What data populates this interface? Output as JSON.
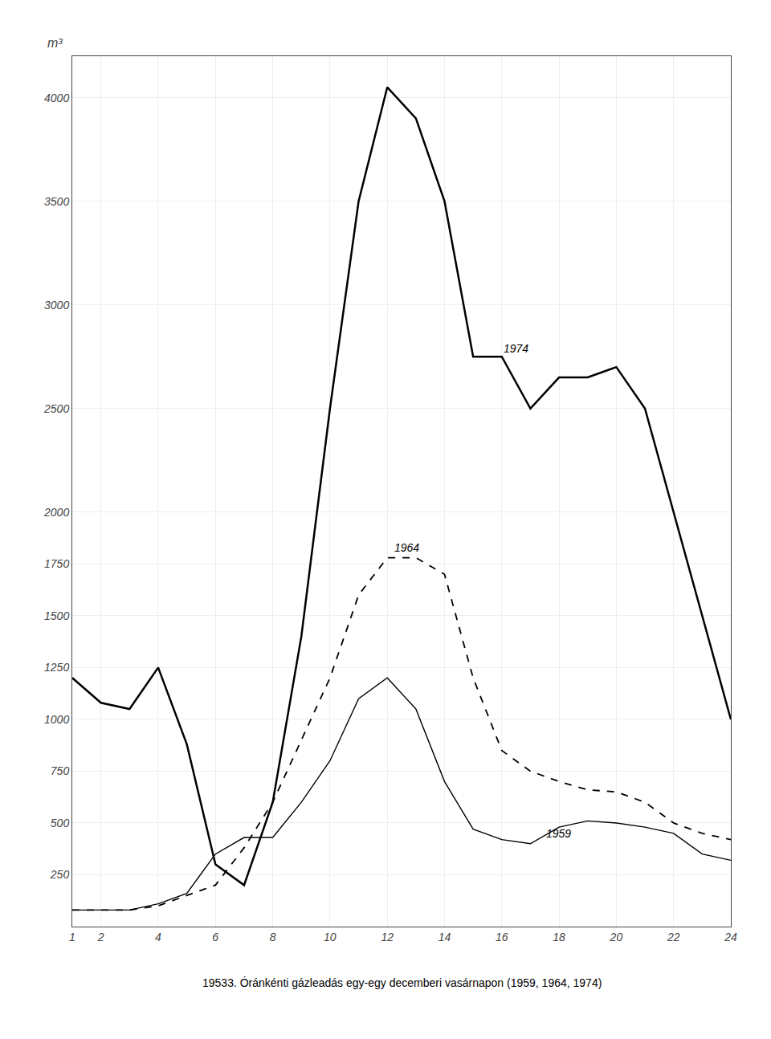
{
  "chart_data": {
    "type": "line",
    "ylabel": "m³",
    "caption": "19533. Óránkénti gázleadás egy-egy decemberi vasárnapon (1959, 1964, 1974)",
    "x": [
      1,
      2,
      3,
      4,
      5,
      6,
      7,
      8,
      9,
      10,
      11,
      12,
      13,
      14,
      15,
      16,
      17,
      18,
      19,
      20,
      21,
      22,
      23,
      24
    ],
    "series": [
      {
        "name": "1974",
        "color": "#000000",
        "line_style": "solid",
        "values": [
          1200,
          1080,
          1050,
          1250,
          880,
          300,
          200,
          600,
          1400,
          2500,
          3500,
          4050,
          3900,
          3500,
          2750,
          2750,
          2500,
          2650,
          2650,
          2700,
          2500,
          2000,
          1500,
          1000
        ]
      },
      {
        "name": "1964",
        "color": "#000000",
        "line_style": "dashed",
        "values": [
          80,
          80,
          80,
          100,
          150,
          200,
          380,
          600,
          900,
          1200,
          1600,
          1780,
          1780,
          1700,
          1200,
          850,
          750,
          700,
          660,
          650,
          600,
          500,
          450,
          420
        ]
      },
      {
        "name": "1959",
        "color": "#000000",
        "line_style": "solid",
        "values": [
          80,
          80,
          80,
          110,
          160,
          350,
          430,
          430,
          600,
          800,
          1100,
          1200,
          1050,
          700,
          470,
          420,
          400,
          480,
          510,
          500,
          480,
          450,
          350,
          320
        ]
      }
    ],
    "annotations": [
      {
        "text": "1974",
        "x": 16,
        "y": 2750
      },
      {
        "text": "1964",
        "x": 12.2,
        "y": 1790
      },
      {
        "text": "1959",
        "x": 17.5,
        "y": 410
      }
    ],
    "xlim": [
      1,
      24
    ],
    "xticks": [
      1,
      2,
      4,
      6,
      8,
      10,
      12,
      14,
      16,
      18,
      20,
      22,
      24
    ],
    "ylim": [
      0,
      4200
    ],
    "yticks": [
      250,
      500,
      750,
      1000,
      1250,
      1500,
      1750,
      2000,
      2500,
      3000,
      3500,
      4000
    ],
    "grid": true
  }
}
